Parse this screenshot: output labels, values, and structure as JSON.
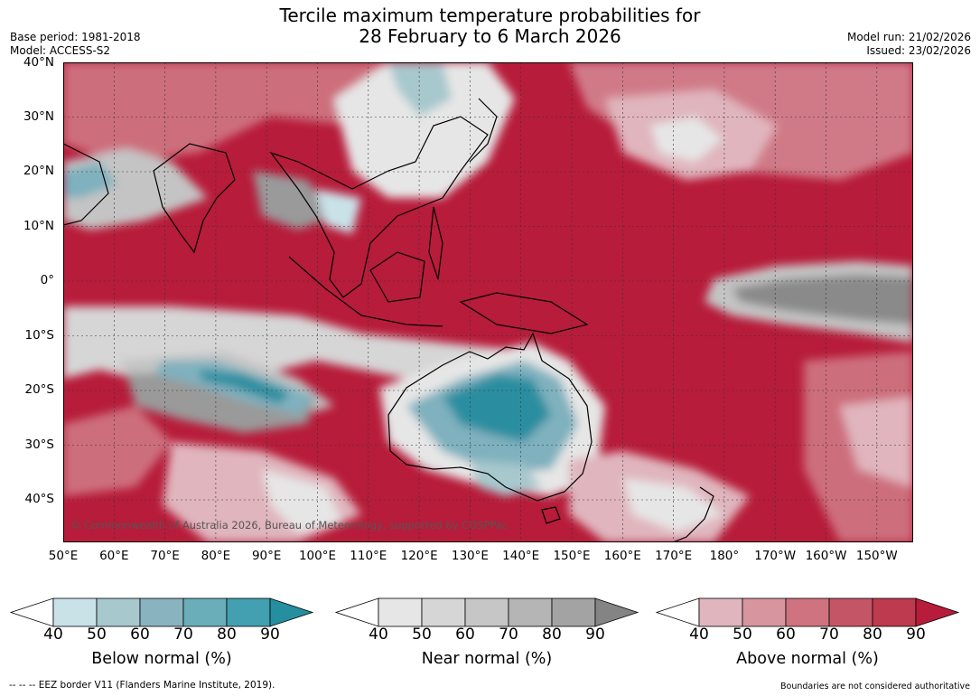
{
  "title": {
    "line1": "Tercile maximum temperature probabilities for",
    "line2": "28 February to 6 March 2026"
  },
  "meta": {
    "base_period": "Base period: 1981-2018",
    "model": "Model: ACCESS-S2",
    "model_run": "Model run: 21/02/2026",
    "issued": "Issued: 23/02/2026"
  },
  "map": {
    "lat_labels": [
      "40°N",
      "30°N",
      "20°N",
      "10°N",
      "0°",
      "10°S",
      "20°S",
      "30°S",
      "40°S"
    ],
    "lon_labels": [
      "50°E",
      "60°E",
      "70°E",
      "80°E",
      "90°E",
      "100°E",
      "110°E",
      "120°E",
      "130°E",
      "140°E",
      "150°E",
      "160°E",
      "170°E",
      "180°",
      "170°W",
      "160°W",
      "150°W"
    ],
    "credit": "© Commonwealth of Australia 2026, Bureau of Meteorology, supported by COSPPac",
    "colors": {
      "ocean_base": "#b71c3a",
      "above_light": "#e0b5bd",
      "above_mid": "#cd6e7d",
      "near_light": "#e6e6e6",
      "near_mid": "#c4c4c4",
      "near_dark": "#8a8a8a",
      "below_light": "#c9e2e8",
      "below_mid": "#7fb1be",
      "below_dark": "#2a8ea0"
    }
  },
  "colorbars": [
    {
      "id": "below",
      "title": "Below normal (%)",
      "ticks": [
        "40",
        "50",
        "60",
        "70",
        "80",
        "90"
      ],
      "colors": [
        "#c9e2e8",
        "#a7c8cd",
        "#8ab3c0",
        "#6aaeba",
        "#43a0b0",
        "#258f9f"
      ]
    },
    {
      "id": "near",
      "title": "Near normal (%)",
      "ticks": [
        "40",
        "50",
        "60",
        "70",
        "80",
        "90"
      ],
      "colors": [
        "#e6e6e6",
        "#d6d6d6",
        "#c6c6c6",
        "#b5b5b5",
        "#a3a3a3",
        "#848484"
      ]
    },
    {
      "id": "above",
      "title": "Above normal (%)",
      "ticks": [
        "40",
        "50",
        "60",
        "70",
        "80",
        "90"
      ],
      "colors": [
        "#e0b5bd",
        "#d7959f",
        "#ce737f",
        "#c45567",
        "#bd3a4f",
        "#b71c3a"
      ]
    }
  ],
  "footer": {
    "eez": "--  --  -- EEZ border V11 (Flanders Marine Institute, 2019).",
    "disclaimer": "Boundaries are not considered authoritative"
  }
}
